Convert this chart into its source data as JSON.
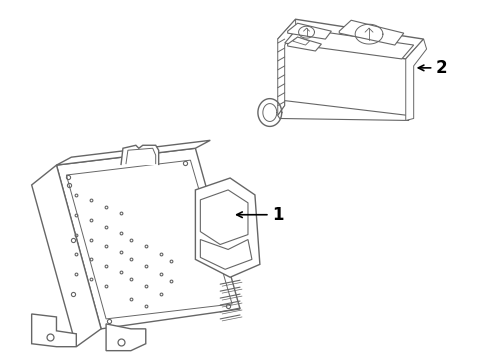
{
  "bg_color": "#ffffff",
  "line_color": "#666666",
  "line_width": 1.0,
  "label_1": "1",
  "label_2": "2"
}
